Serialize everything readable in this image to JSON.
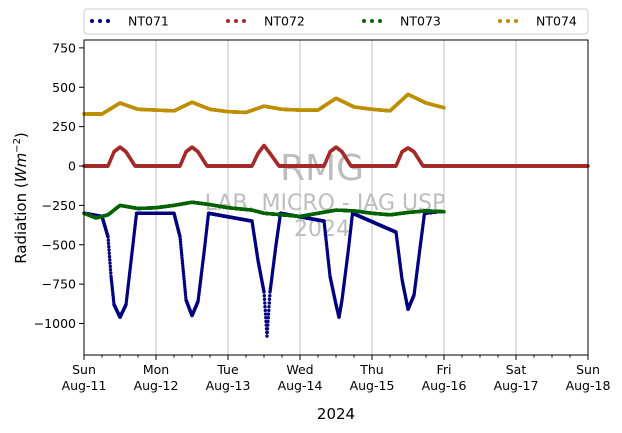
{
  "chart_data": {
    "type": "scatter",
    "ylabel_main": "Radiation (",
    "ylabel_math": "Wm",
    "ylabel_exp": "−2",
    "ylabel_close": ")",
    "xlabel": "2024",
    "ylim": [
      -1200,
      800
    ],
    "xlim": [
      "2024-08-11",
      "2024-08-18"
    ],
    "y_ticks": [
      750,
      500,
      250,
      0,
      -250,
      -500,
      -750,
      -1000
    ],
    "y_tick_labels": [
      "750",
      "500",
      "250",
      "0",
      "−250",
      "−500",
      "−750",
      "−1000"
    ],
    "x_ticks": [
      {
        "date": "2024-08-11",
        "day": "Sun",
        "label": "Aug-11"
      },
      {
        "date": "2024-08-12",
        "day": "Mon",
        "label": "Aug-12"
      },
      {
        "date": "2024-08-13",
        "day": "Tue",
        "label": "Aug-13"
      },
      {
        "date": "2024-08-14",
        "day": "Wed",
        "label": "Aug-14"
      },
      {
        "date": "2024-08-15",
        "day": "Thu",
        "label": "Aug-15"
      },
      {
        "date": "2024-08-16",
        "day": "Fri",
        "label": "Aug-16"
      },
      {
        "date": "2024-08-17",
        "day": "Sat",
        "label": "Aug-17"
      },
      {
        "date": "2024-08-18",
        "day": "Sun",
        "label": "Aug-18"
      }
    ],
    "grid": "vertical",
    "legend_position": "top",
    "watermark": [
      "RMG",
      "LAB. MICRO - IAG USP",
      "2024"
    ],
    "series": [
      {
        "name": "NT071",
        "color": "#00007f",
        "values": [
          [
            "2024-08-11 00:00",
            -300
          ],
          [
            "2024-08-11 06:00",
            -320
          ],
          [
            "2024-08-11 08:00",
            -450
          ],
          [
            "2024-08-11 09:00",
            -700
          ],
          [
            "2024-08-11 10:00",
            -880
          ],
          [
            "2024-08-11 12:00",
            -960
          ],
          [
            "2024-08-11 14:00",
            -880
          ],
          [
            "2024-08-11 16:00",
            -550
          ],
          [
            "2024-08-11 17:30",
            -300
          ],
          [
            "2024-08-12 06:00",
            -300
          ],
          [
            "2024-08-12 08:00",
            -450
          ],
          [
            "2024-08-12 10:00",
            -850
          ],
          [
            "2024-08-12 12:00",
            -950
          ],
          [
            "2024-08-12 14:00",
            -860
          ],
          [
            "2024-08-12 16:00",
            -550
          ],
          [
            "2024-08-12 17:30",
            -300
          ],
          [
            "2024-08-13 08:00",
            -350
          ],
          [
            "2024-08-13 10:00",
            -600
          ],
          [
            "2024-08-13 12:00",
            -800
          ],
          [
            "2024-08-13 13:00",
            -1080
          ],
          [
            "2024-08-13 14:00",
            -800
          ],
          [
            "2024-08-13 16:00",
            -500
          ],
          [
            "2024-08-13 17:30",
            -300
          ],
          [
            "2024-08-14 08:00",
            -350
          ],
          [
            "2024-08-14 10:00",
            -700
          ],
          [
            "2024-08-14 12:00",
            -880
          ],
          [
            "2024-08-14 13:00",
            -960
          ],
          [
            "2024-08-14 14:00",
            -850
          ],
          [
            "2024-08-14 16:00",
            -550
          ],
          [
            "2024-08-14 17:30",
            -300
          ],
          [
            "2024-08-15 08:00",
            -420
          ],
          [
            "2024-08-15 10:00",
            -720
          ],
          [
            "2024-08-15 12:00",
            -910
          ],
          [
            "2024-08-15 14:00",
            -820
          ],
          [
            "2024-08-15 16:00",
            -520
          ],
          [
            "2024-08-15 17:30",
            -300
          ],
          [
            "2024-08-15 22:00",
            -290
          ]
        ]
      },
      {
        "name": "NT072",
        "color": "#a52a2a",
        "values": [
          [
            "2024-08-11 00:00",
            0
          ],
          [
            "2024-08-11 08:00",
            0
          ],
          [
            "2024-08-11 10:00",
            90
          ],
          [
            "2024-08-11 12:00",
            120
          ],
          [
            "2024-08-11 14:00",
            90
          ],
          [
            "2024-08-11 17:00",
            0
          ],
          [
            "2024-08-12 08:00",
            0
          ],
          [
            "2024-08-12 10:00",
            90
          ],
          [
            "2024-08-12 12:00",
            120
          ],
          [
            "2024-08-12 14:00",
            90
          ],
          [
            "2024-08-12 17:00",
            0
          ],
          [
            "2024-08-13 08:00",
            0
          ],
          [
            "2024-08-13 10:00",
            80
          ],
          [
            "2024-08-13 12:00",
            130
          ],
          [
            "2024-08-13 14:00",
            80
          ],
          [
            "2024-08-13 17:00",
            0
          ],
          [
            "2024-08-14 08:00",
            0
          ],
          [
            "2024-08-14 10:00",
            90
          ],
          [
            "2024-08-14 12:00",
            120
          ],
          [
            "2024-08-14 14:00",
            90
          ],
          [
            "2024-08-14 17:00",
            0
          ],
          [
            "2024-08-15 08:00",
            0
          ],
          [
            "2024-08-15 10:00",
            90
          ],
          [
            "2024-08-15 12:00",
            115
          ],
          [
            "2024-08-15 14:00",
            90
          ],
          [
            "2024-08-15 17:00",
            0
          ],
          [
            "2024-08-18 00:00",
            0
          ]
        ]
      },
      {
        "name": "NT073",
        "color": "#006400",
        "values": [
          [
            "2024-08-11 00:00",
            -300
          ],
          [
            "2024-08-11 04:00",
            -330
          ],
          [
            "2024-08-11 08:00",
            -310
          ],
          [
            "2024-08-11 12:00",
            -250
          ],
          [
            "2024-08-11 18:00",
            -270
          ],
          [
            "2024-08-12 00:00",
            -265
          ],
          [
            "2024-08-12 06:00",
            -250
          ],
          [
            "2024-08-12 12:00",
            -230
          ],
          [
            "2024-08-12 18:00",
            -245
          ],
          [
            "2024-08-13 00:00",
            -265
          ],
          [
            "2024-08-13 08:00",
            -280
          ],
          [
            "2024-08-13 12:00",
            -300
          ],
          [
            "2024-08-13 18:00",
            -310
          ],
          [
            "2024-08-14 00:00",
            -320
          ],
          [
            "2024-08-14 06:00",
            -300
          ],
          [
            "2024-08-14 12:00",
            -280
          ],
          [
            "2024-08-14 18:00",
            -285
          ],
          [
            "2024-08-15 00:00",
            -300
          ],
          [
            "2024-08-15 06:00",
            -310
          ],
          [
            "2024-08-15 12:00",
            -295
          ],
          [
            "2024-08-15 18:00",
            -285
          ],
          [
            "2024-08-16 00:00",
            -290
          ]
        ]
      },
      {
        "name": "NT074",
        "color": "#bf8f00",
        "values": [
          [
            "2024-08-11 00:00",
            330
          ],
          [
            "2024-08-11 06:00",
            330
          ],
          [
            "2024-08-11 12:00",
            400
          ],
          [
            "2024-08-11 18:00",
            360
          ],
          [
            "2024-08-12 00:00",
            355
          ],
          [
            "2024-08-12 06:00",
            350
          ],
          [
            "2024-08-12 12:00",
            405
          ],
          [
            "2024-08-12 18:00",
            360
          ],
          [
            "2024-08-13 00:00",
            345
          ],
          [
            "2024-08-13 06:00",
            340
          ],
          [
            "2024-08-13 12:00",
            380
          ],
          [
            "2024-08-13 18:00",
            360
          ],
          [
            "2024-08-14 00:00",
            355
          ],
          [
            "2024-08-14 06:00",
            355
          ],
          [
            "2024-08-14 12:00",
            430
          ],
          [
            "2024-08-14 18:00",
            375
          ],
          [
            "2024-08-15 00:00",
            360
          ],
          [
            "2024-08-15 06:00",
            350
          ],
          [
            "2024-08-15 12:00",
            455
          ],
          [
            "2024-08-15 18:00",
            400
          ],
          [
            "2024-08-16 00:00",
            370
          ]
        ]
      }
    ]
  }
}
